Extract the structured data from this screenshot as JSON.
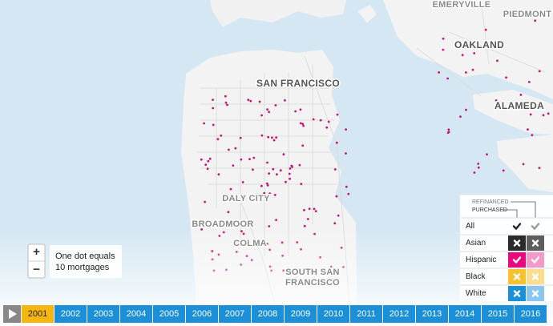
{
  "map_labels": [
    "EMERYVILLE",
    "PIEDMONT",
    "OAKLAND",
    "SAN FRANCISCO",
    "ALAMEDA",
    "DALY CITY",
    "BROADMOOR",
    "COLMA",
    "SOUTH SAN",
    "FRANCISCO"
  ],
  "zoom": {
    "in": "+",
    "out": "−"
  },
  "note": [
    "One dot equals",
    "10 mortgages"
  ],
  "legend": {
    "refinanced": "REFINANCED",
    "purchased": "PURCHASED",
    "rows": [
      {
        "label": "All",
        "refinanced": true,
        "purchased": true,
        "color": null,
        "light": null
      },
      {
        "label": "Asian",
        "refinanced": false,
        "purchased": false,
        "color": "#2b2b2b",
        "light": "#5e5e5e"
      },
      {
        "label": "Hispanic",
        "refinanced": true,
        "purchased": true,
        "color": "#e8097f",
        "light": "#f39ac9"
      },
      {
        "label": "Black",
        "refinanced": false,
        "purchased": false,
        "color": "#f8c22e",
        "light": "#fbdd8e"
      },
      {
        "label": "White",
        "refinanced": false,
        "purchased": false,
        "color": "#1b8fd8",
        "light": "#8ac6ee"
      }
    ]
  },
  "timeline": {
    "selected": 0,
    "years": [
      "2001",
      "2002",
      "2003",
      "2004",
      "2005",
      "2006",
      "2007",
      "2008",
      "2009",
      "2010",
      "2011",
      "2012",
      "2013",
      "2014",
      "2015",
      "2016"
    ]
  }
}
